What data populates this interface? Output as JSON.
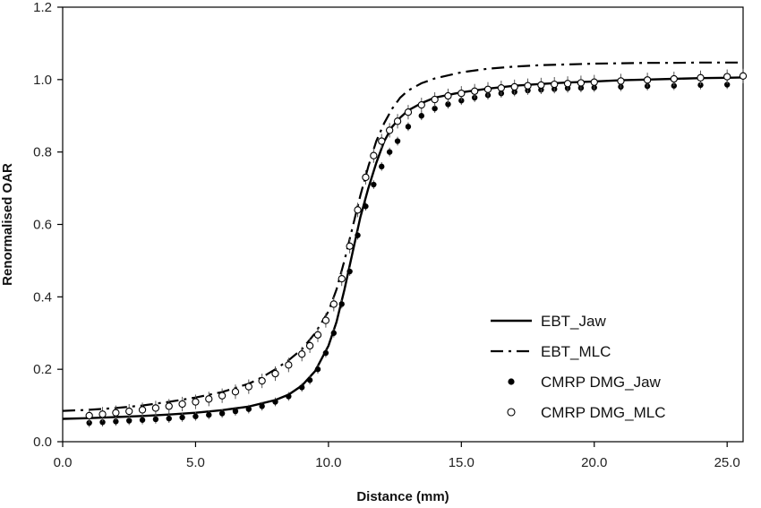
{
  "chart_data": {
    "type": "scatter",
    "xlabel": "Distance (mm)",
    "ylabel": "Renormalised OAR",
    "xlim": [
      0,
      25.6
    ],
    "ylim": [
      0,
      1.2
    ],
    "x_ticks": [
      0,
      5,
      10,
      15,
      20,
      25
    ],
    "x_tick_labels": [
      "0.0",
      "5.0",
      "10.0",
      "15.0",
      "20.0",
      "25.0"
    ],
    "y_ticks": [
      0,
      0.2,
      0.4,
      0.6,
      0.8,
      1.0,
      1.2
    ],
    "y_tick_labels": [
      "0.0",
      "0.2",
      "0.4",
      "0.6",
      "0.8",
      "1.0",
      "1.2"
    ],
    "legend_position": "bottom-right",
    "series": [
      {
        "name": "EBT_Jaw",
        "style": "solid-line",
        "color": "#000000",
        "x": [
          0.0,
          1.0,
          2.0,
          3.0,
          4.0,
          5.0,
          6.0,
          7.0,
          8.0,
          8.5,
          9.0,
          9.5,
          10.0,
          10.3,
          10.6,
          10.9,
          11.2,
          11.5,
          11.8,
          12.1,
          12.4,
          12.7,
          13.0,
          13.5,
          14.0,
          15.0,
          16.0,
          17.0,
          18.0,
          19.0,
          20.0,
          21.0,
          22.0,
          23.0,
          24.0,
          25.0,
          25.6
        ],
        "y": [
          0.063,
          0.065,
          0.068,
          0.071,
          0.075,
          0.08,
          0.087,
          0.097,
          0.115,
          0.13,
          0.155,
          0.195,
          0.265,
          0.33,
          0.42,
          0.52,
          0.62,
          0.7,
          0.77,
          0.83,
          0.87,
          0.895,
          0.915,
          0.935,
          0.95,
          0.965,
          0.975,
          0.983,
          0.988,
          0.992,
          0.995,
          0.998,
          1.0,
          1.002,
          1.004,
          1.005,
          1.006
        ]
      },
      {
        "name": "EBT_MLC",
        "style": "dash-dot-line",
        "color": "#000000",
        "x": [
          0.0,
          1.0,
          2.0,
          3.0,
          4.0,
          5.0,
          6.0,
          7.0,
          7.5,
          8.0,
          8.5,
          9.0,
          9.5,
          10.0,
          10.3,
          10.6,
          10.9,
          11.2,
          11.5,
          11.8,
          12.1,
          12.4,
          12.7,
          13.0,
          13.5,
          14.0,
          15.0,
          16.0,
          17.0,
          18.0,
          19.0,
          20.0,
          21.0,
          22.0,
          23.0,
          24.0,
          25.0,
          25.6
        ],
        "y": [
          0.085,
          0.088,
          0.093,
          0.1,
          0.11,
          0.122,
          0.137,
          0.16,
          0.178,
          0.2,
          0.225,
          0.255,
          0.3,
          0.36,
          0.42,
          0.5,
          0.59,
          0.68,
          0.76,
          0.83,
          0.88,
          0.92,
          0.95,
          0.97,
          0.99,
          1.003,
          1.02,
          1.03,
          1.036,
          1.04,
          1.042,
          1.044,
          1.045,
          1.046,
          1.046,
          1.047,
          1.047,
          1.047
        ]
      },
      {
        "name": "CMRP DMG_Jaw",
        "style": "filled-circle",
        "color": "#000000",
        "error_bar": 0.012,
        "x": [
          1.0,
          1.5,
          2.0,
          2.5,
          3.0,
          3.5,
          4.0,
          4.5,
          5.0,
          5.5,
          6.0,
          6.5,
          7.0,
          7.5,
          8.0,
          8.5,
          9.0,
          9.3,
          9.6,
          9.9,
          10.2,
          10.5,
          10.8,
          11.1,
          11.4,
          11.7,
          12.0,
          12.3,
          12.6,
          13.0,
          13.5,
          14.0,
          14.5,
          15.0,
          15.5,
          16.0,
          16.5,
          17.0,
          17.5,
          18.0,
          18.5,
          19.0,
          19.5,
          20.0,
          21.0,
          22.0,
          23.0,
          24.0,
          25.0
        ],
        "y": [
          0.052,
          0.054,
          0.056,
          0.058,
          0.06,
          0.062,
          0.064,
          0.067,
          0.07,
          0.074,
          0.078,
          0.084,
          0.09,
          0.098,
          0.11,
          0.125,
          0.15,
          0.17,
          0.2,
          0.245,
          0.3,
          0.38,
          0.47,
          0.57,
          0.65,
          0.71,
          0.76,
          0.8,
          0.83,
          0.87,
          0.9,
          0.92,
          0.932,
          0.942,
          0.95,
          0.957,
          0.962,
          0.966,
          0.97,
          0.972,
          0.974,
          0.976,
          0.977,
          0.978,
          0.98,
          0.982,
          0.983,
          0.985,
          0.986
        ]
      },
      {
        "name": "CMRP DMG_MLC",
        "style": "open-circle",
        "color": "#000000",
        "error_bar": 0.02,
        "x": [
          1.0,
          1.5,
          2.0,
          2.5,
          3.0,
          3.5,
          4.0,
          4.5,
          5.0,
          5.5,
          6.0,
          6.5,
          7.0,
          7.5,
          8.0,
          8.5,
          9.0,
          9.3,
          9.6,
          9.9,
          10.2,
          10.5,
          10.8,
          11.1,
          11.4,
          11.7,
          12.0,
          12.3,
          12.6,
          13.0,
          13.5,
          14.0,
          14.5,
          15.0,
          15.5,
          16.0,
          16.5,
          17.0,
          17.5,
          18.0,
          18.5,
          19.0,
          19.5,
          20.0,
          21.0,
          22.0,
          23.0,
          24.0,
          25.0,
          25.6
        ],
        "y": [
          0.072,
          0.076,
          0.08,
          0.084,
          0.088,
          0.093,
          0.098,
          0.104,
          0.11,
          0.118,
          0.127,
          0.138,
          0.152,
          0.168,
          0.188,
          0.212,
          0.242,
          0.265,
          0.295,
          0.335,
          0.38,
          0.45,
          0.54,
          0.64,
          0.73,
          0.79,
          0.83,
          0.86,
          0.885,
          0.91,
          0.93,
          0.945,
          0.955,
          0.962,
          0.968,
          0.973,
          0.977,
          0.98,
          0.983,
          0.985,
          0.987,
          0.989,
          0.991,
          0.993,
          0.996,
          0.999,
          1.002,
          1.005,
          1.008,
          1.01
        ]
      }
    ]
  }
}
